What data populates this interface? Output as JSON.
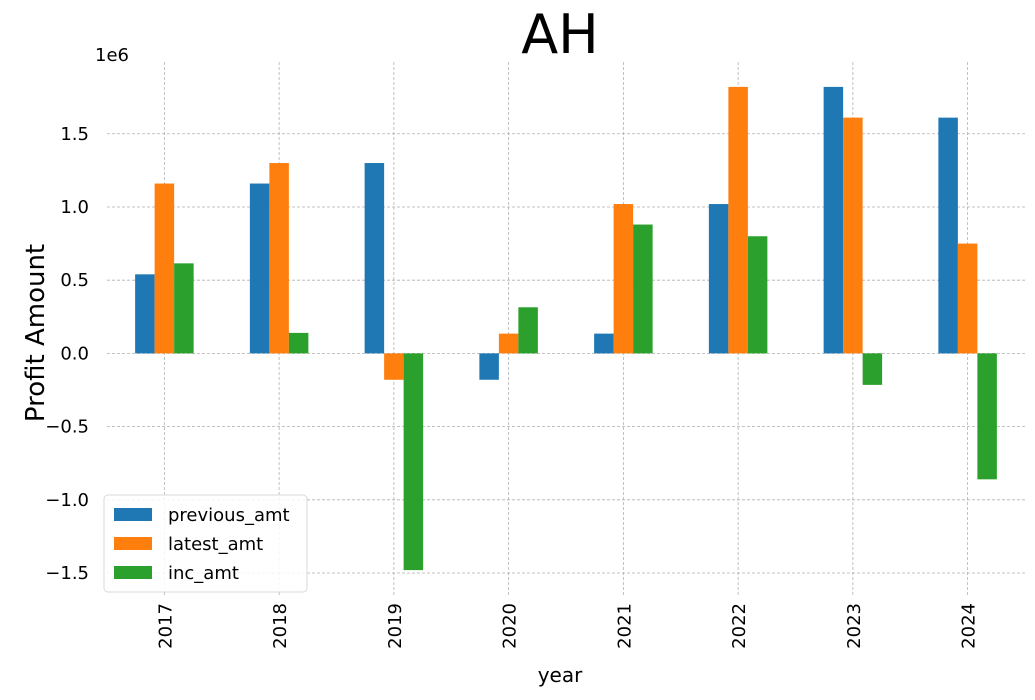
{
  "chart_data": {
    "type": "bar",
    "title": "AH",
    "xlabel": "year",
    "ylabel": "Profit Amount",
    "y_scale_label": "1e6",
    "categories": [
      "2017",
      "2018",
      "2019",
      "2020",
      "2021",
      "2022",
      "2023",
      "2024"
    ],
    "series": [
      {
        "name": "previous_amt",
        "color": "#1f77b4",
        "values": [
          540000,
          1160000,
          1300000,
          -180000,
          135000,
          1020000,
          1820000,
          1610000
        ]
      },
      {
        "name": "latest_amt",
        "color": "#ff7f0e",
        "values": [
          1160000,
          1300000,
          -180000,
          135000,
          1020000,
          1820000,
          1610000,
          750000
        ]
      },
      {
        "name": "inc_amt",
        "color": "#2ca02c",
        "values": [
          615000,
          140000,
          -1480000,
          315000,
          880000,
          800000,
          -215000,
          -860000
        ]
      }
    ],
    "ylim": [
      -1650000,
      1990000
    ],
    "yticks": [
      -1500000,
      -1000000,
      -500000,
      0,
      500000,
      1000000,
      1500000
    ],
    "ytick_labels": [
      "−1.5",
      "−1.0",
      "−0.5",
      "0.0",
      "0.5",
      "1.0",
      "1.5"
    ],
    "grid": true,
    "legend_position": "lower-left"
  }
}
